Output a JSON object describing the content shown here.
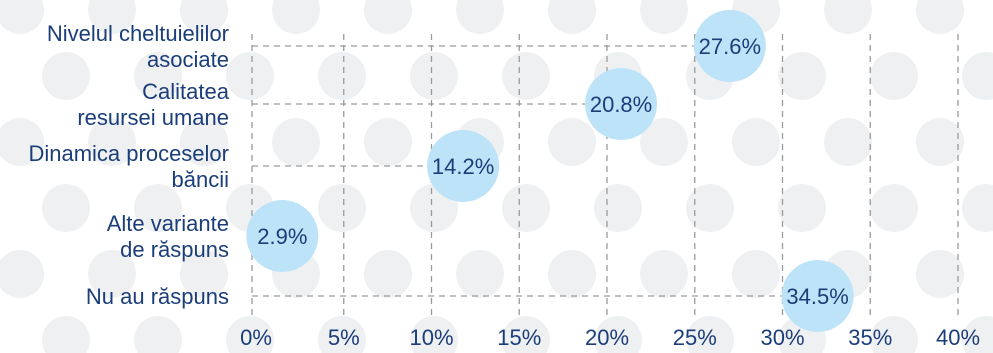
{
  "chart_data": {
    "type": "scatter",
    "title": "",
    "xlabel": "",
    "ylabel": "",
    "xlim": [
      0,
      40
    ],
    "x_ticks": [
      0,
      5,
      10,
      15,
      20,
      25,
      30,
      35,
      40
    ],
    "x_tick_labels": [
      "0%",
      "5%",
      "10%",
      "15%",
      "20%",
      "25%",
      "30%",
      "35%",
      "40%"
    ],
    "grid": true,
    "categories": [
      [
        "Nivelul cheltuielilor",
        "asociate"
      ],
      [
        "Calitatea",
        "resursei umane"
      ],
      [
        "Dinamica proceselor",
        "băncii"
      ],
      [
        "Alte variante",
        "de răspuns"
      ],
      [
        "Nu au răspuns"
      ]
    ],
    "points": [
      {
        "x": 27,
        "value": 27.6,
        "label": "27.6%"
      },
      {
        "x": 20.8,
        "value": 20.8,
        "label": "20.8%"
      },
      {
        "x": 11.8,
        "value": 14.2,
        "label": "14.2%"
      },
      {
        "x": 1.5,
        "value": 2.9,
        "label": "2.9%"
      },
      {
        "x": 32,
        "value": 34.5,
        "label": "34.5%"
      }
    ],
    "colors": {
      "text": "#1b3e7a",
      "bubble": "#bde3f8",
      "grid": "#9a9a9a",
      "background_dots": "#eef0f2"
    }
  }
}
